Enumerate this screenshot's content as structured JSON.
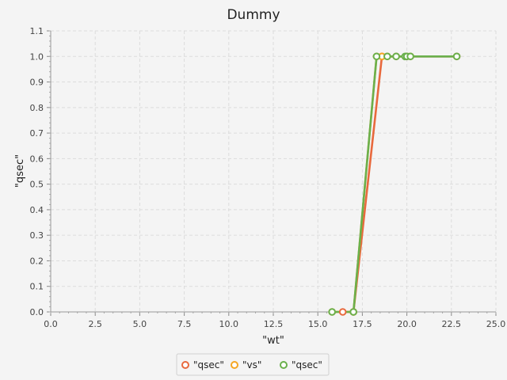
{
  "chart_data": {
    "type": "line",
    "title": "Dummy",
    "xlabel": "\"wt\"",
    "ylabel": "\"qsec\"",
    "xlim": [
      0,
      25
    ],
    "ylim": [
      0,
      1.1
    ],
    "x_ticks": [
      "0.0",
      "2.5",
      "5.0",
      "7.5",
      "10.0",
      "12.5",
      "15.0",
      "17.5",
      "20.0",
      "22.5",
      "25.0"
    ],
    "y_ticks": [
      "0.0",
      "0.1",
      "0.2",
      "0.3",
      "0.4",
      "0.5",
      "0.6",
      "0.7",
      "0.8",
      "0.9",
      "1.0",
      "1.1"
    ],
    "grid": true,
    "legend_position": "bottom",
    "series": [
      {
        "name": "\"qsec\"",
        "color": "#e8693d",
        "points": [
          [
            16.4,
            0
          ],
          [
            17.0,
            0
          ],
          [
            18.6,
            1
          ],
          [
            19.4,
            1
          ],
          [
            20.0,
            1
          ],
          [
            22.8,
            1
          ]
        ]
      },
      {
        "name": "\"vs\"",
        "color": "#f5a623",
        "points": [
          [
            15.8,
            0
          ],
          [
            17.0,
            0
          ],
          [
            18.3,
            1
          ],
          [
            18.6,
            1
          ],
          [
            18.9,
            1
          ],
          [
            20.2,
            1
          ]
        ]
      },
      {
        "name": "\"qsec\"",
        "color": "#6ab04c",
        "points": [
          [
            15.8,
            0
          ],
          [
            17.0,
            0
          ],
          [
            18.3,
            1
          ],
          [
            18.9,
            1
          ],
          [
            19.4,
            1
          ],
          [
            19.9,
            1
          ],
          [
            20.0,
            1
          ],
          [
            20.2,
            1
          ],
          [
            22.8,
            1
          ]
        ]
      }
    ]
  }
}
